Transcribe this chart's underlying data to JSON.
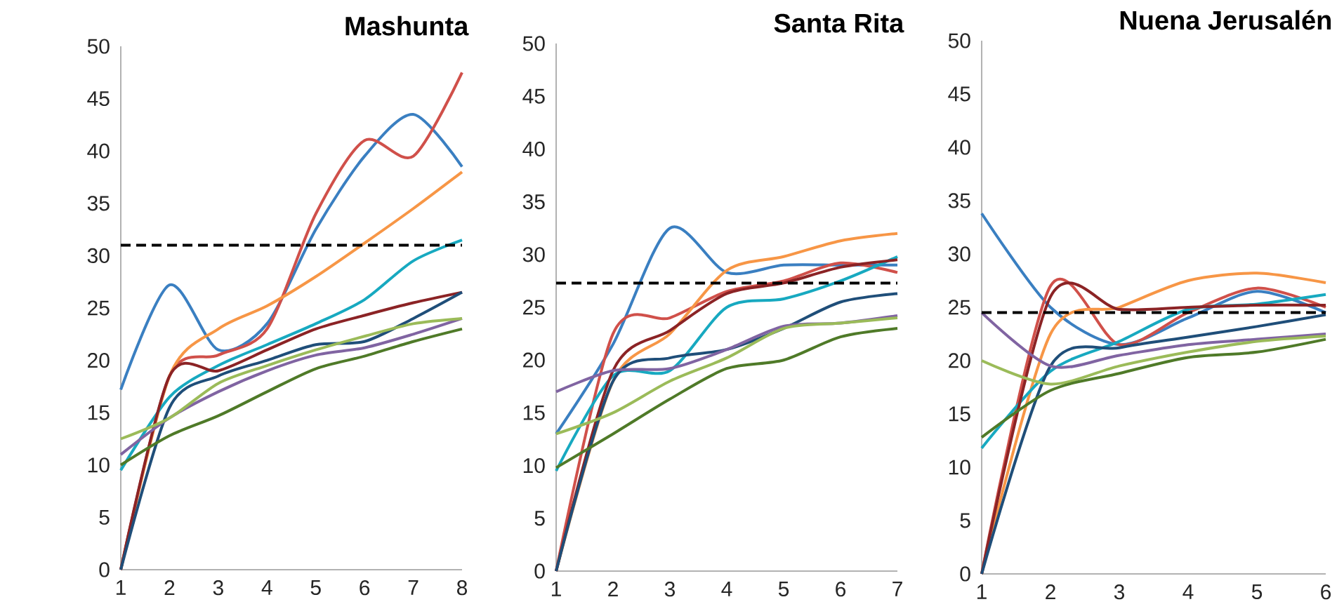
{
  "chart_data": [
    {
      "type": "line",
      "title": "Mashunta",
      "x": [
        1,
        2,
        3,
        4,
        5,
        6,
        7,
        8
      ],
      "xlim": [
        1,
        8
      ],
      "xticks": [
        1,
        2,
        3,
        4,
        5,
        6,
        7,
        8
      ],
      "ylim": [
        0,
        50
      ],
      "yticks": [
        0,
        5,
        10,
        15,
        20,
        25,
        30,
        35,
        40,
        45,
        50
      ],
      "ref_lines": [
        {
          "axis": "y",
          "value": 31,
          "color": "#000000",
          "line_style": "dashed"
        }
      ],
      "series": [
        {
          "color": "#3a7fc1",
          "values": [
            17.2,
            27.2,
            21,
            23.5,
            32.5,
            39.5,
            43.5,
            38.5
          ]
        },
        {
          "color": "#d0504a",
          "values": [
            0,
            18.5,
            20.5,
            23,
            34,
            41,
            39.5,
            47.5
          ]
        },
        {
          "color": "#f79646",
          "values": [
            0,
            18.5,
            23,
            25.2,
            28,
            31.2,
            34.5,
            38
          ]
        },
        {
          "color": "#17a9c0",
          "values": [
            9.5,
            16.5,
            19.5,
            21.5,
            23.5,
            25.8,
            29.5,
            31.5
          ]
        },
        {
          "color": "#8b2325",
          "values": [
            0,
            18.5,
            19,
            21,
            23,
            24.3,
            25.5,
            26.5
          ]
        },
        {
          "color": "#1f4e79",
          "values": [
            0,
            15.5,
            18.5,
            20,
            21.5,
            21.8,
            24,
            26.5
          ]
        },
        {
          "color": "#8064a2",
          "values": [
            11,
            14.5,
            17,
            19,
            20.5,
            21.2,
            22.5,
            24
          ]
        },
        {
          "color": "#9bbb59",
          "values": [
            12.5,
            14.5,
            17.8,
            19.5,
            21,
            22.3,
            23.5,
            24
          ]
        },
        {
          "color": "#4f7a28",
          "values": [
            10,
            12.8,
            14.7,
            17,
            19.2,
            20.4,
            21.8,
            23
          ]
        }
      ]
    },
    {
      "type": "line",
      "title": "Santa Rita",
      "x": [
        1,
        2,
        3,
        4,
        5,
        6,
        7
      ],
      "xlim": [
        1,
        7
      ],
      "xticks": [
        1,
        2,
        3,
        4,
        5,
        6,
        7
      ],
      "ylim": [
        0,
        50
      ],
      "yticks": [
        0,
        5,
        10,
        15,
        20,
        25,
        30,
        35,
        40,
        45,
        50
      ],
      "ref_lines": [
        {
          "axis": "y",
          "value": 27.3,
          "color": "#000000",
          "line_style": "dashed"
        }
      ],
      "series": [
        {
          "color": "#3a7fc1",
          "values": [
            13,
            21.5,
            32.5,
            28.3,
            29,
            29,
            29
          ]
        },
        {
          "color": "#d0504a",
          "values": [
            0,
            22.5,
            24,
            26.5,
            27.5,
            29.2,
            28.3
          ]
        },
        {
          "color": "#f79646",
          "values": [
            0,
            18,
            22.5,
            28.5,
            29.8,
            31.3,
            32
          ]
        },
        {
          "color": "#17a9c0",
          "values": [
            9.5,
            18.5,
            19,
            25,
            25.8,
            27.5,
            29.8
          ]
        },
        {
          "color": "#8b2325",
          "values": [
            0,
            19,
            22.8,
            26.3,
            27.3,
            28.8,
            29.5
          ]
        },
        {
          "color": "#1f4e79",
          "values": [
            0,
            18,
            20.2,
            21,
            23,
            25.5,
            26.3
          ]
        },
        {
          "color": "#8064a2",
          "values": [
            17,
            19,
            19.2,
            21,
            23.2,
            23.5,
            24.2
          ]
        },
        {
          "color": "#9bbb59",
          "values": [
            13,
            15,
            18,
            20.2,
            23,
            23.5,
            24
          ]
        },
        {
          "color": "#4f7a28",
          "values": [
            9.8,
            13,
            16.3,
            19.2,
            20,
            22.2,
            23
          ]
        }
      ]
    },
    {
      "type": "line",
      "title": "Nuena Jerusalén",
      "x": [
        1,
        2,
        3,
        4,
        5,
        6
      ],
      "xlim": [
        1,
        6
      ],
      "xticks": [
        1,
        2,
        3,
        4,
        5,
        6
      ],
      "ylim": [
        0,
        50
      ],
      "yticks": [
        0,
        5,
        10,
        15,
        20,
        25,
        30,
        35,
        40,
        45,
        50
      ],
      "ref_lines": [
        {
          "axis": "y",
          "value": 24.5,
          "color": "#000000",
          "line_style": "dashed"
        }
      ],
      "series": [
        {
          "color": "#3a7fc1",
          "values": [
            33.8,
            25,
            21.5,
            24,
            26.5,
            24.5
          ]
        },
        {
          "color": "#d0504a",
          "values": [
            0,
            27,
            21.5,
            24.5,
            26.8,
            25
          ]
        },
        {
          "color": "#f79646",
          "values": [
            0,
            22.5,
            25,
            27.5,
            28.2,
            27.3
          ]
        },
        {
          "color": "#17a9c0",
          "values": [
            11.8,
            19,
            21.8,
            24.8,
            25.3,
            26.2
          ]
        },
        {
          "color": "#8b2325",
          "values": [
            0,
            26,
            24.8,
            25,
            25.2,
            25.2
          ]
        },
        {
          "color": "#1f4e79",
          "values": [
            0,
            19.5,
            21.2,
            22.2,
            23.2,
            24.3
          ]
        },
        {
          "color": "#8064a2",
          "values": [
            24.5,
            19.5,
            20.5,
            21.5,
            22,
            22.5
          ]
        },
        {
          "color": "#9bbb59",
          "values": [
            20,
            17.8,
            19.5,
            20.8,
            21.8,
            22.3
          ]
        },
        {
          "color": "#4f7a28",
          "values": [
            12.8,
            17.2,
            18.8,
            20.3,
            20.8,
            22
          ]
        }
      ]
    }
  ]
}
